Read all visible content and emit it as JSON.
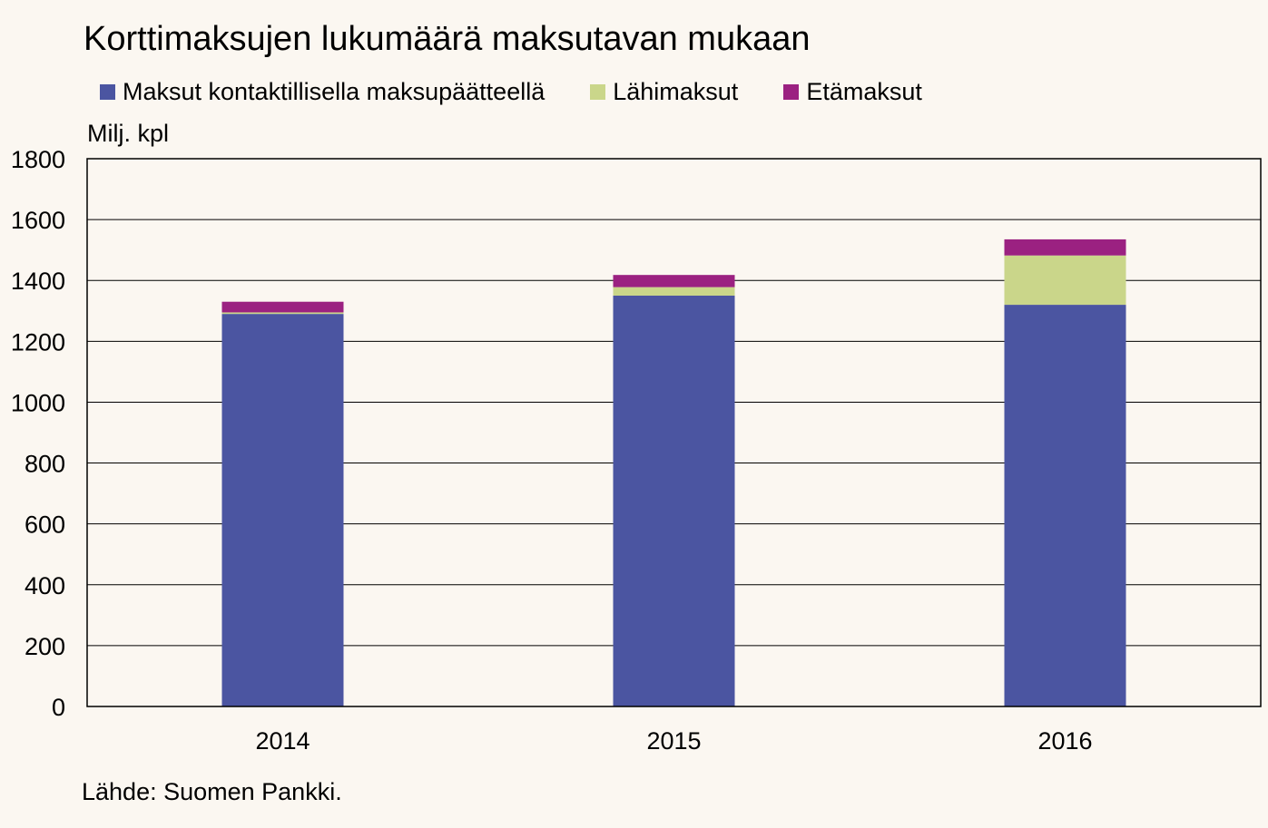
{
  "title": "Korttimaksujen lukumäärä maksutavan mukaan",
  "unit_label": "Milj. kpl",
  "source": "Lähde: Suomen Pankki.",
  "chart_data": {
    "type": "bar",
    "stacked": true,
    "categories": [
      "2014",
      "2015",
      "2016"
    ],
    "series": [
      {
        "name": "Maksut kontaktillisella maksupäätteellä",
        "color": "#4b55a1",
        "values": [
          1290,
          1350,
          1320
        ]
      },
      {
        "name": "Lähimaksut",
        "color": "#cad68a",
        "values": [
          5,
          28,
          162
        ]
      },
      {
        "name": "Etämaksut",
        "color": "#9b2181",
        "values": [
          35,
          40,
          53
        ]
      }
    ],
    "ylim": [
      0,
      1800
    ],
    "yticks": [
      0,
      200,
      400,
      600,
      800,
      1000,
      1200,
      1400,
      1600,
      1800
    ],
    "grid": true,
    "legend_position": "top-left"
  }
}
